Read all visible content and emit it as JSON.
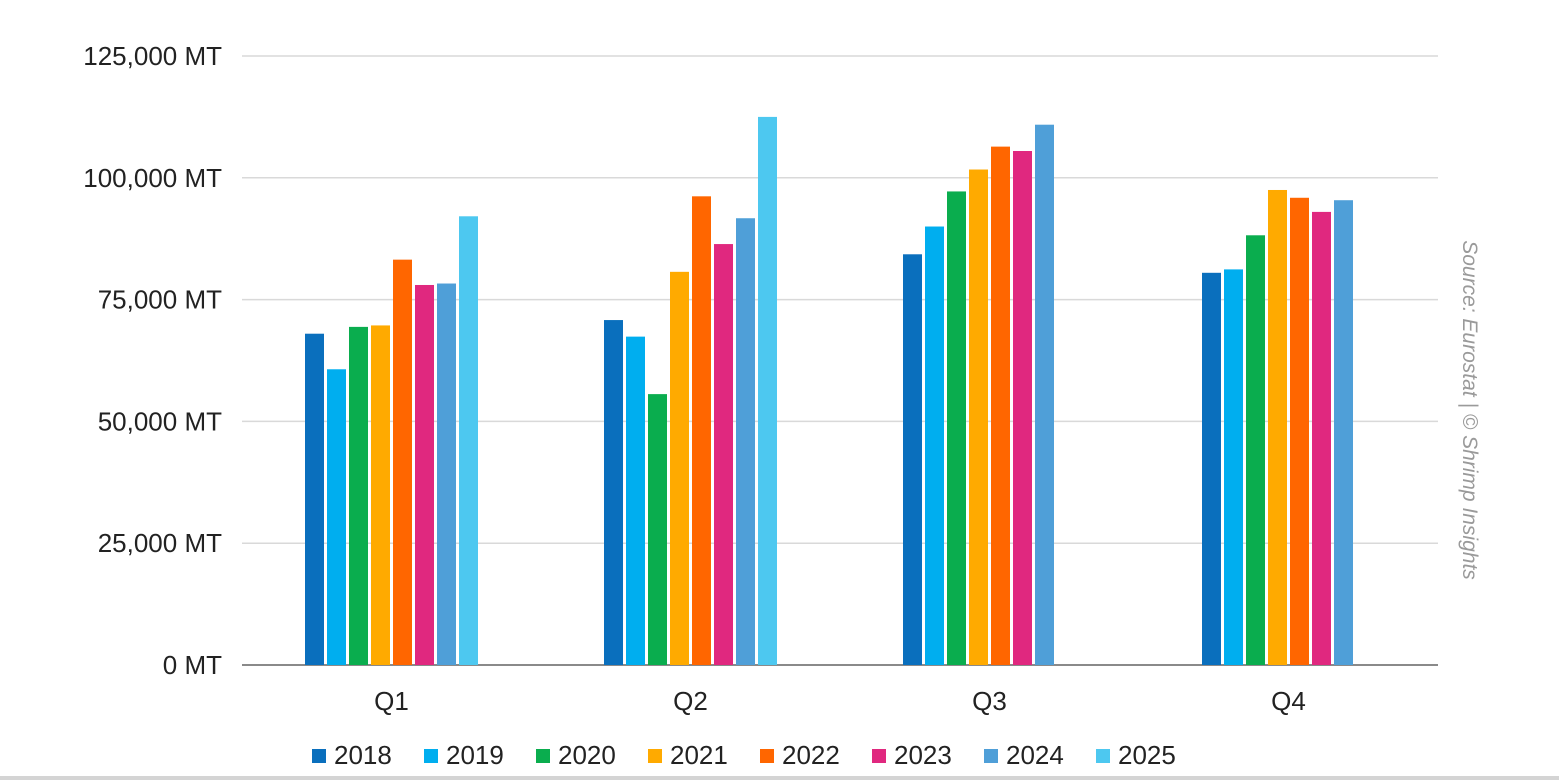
{
  "chart_data": {
    "type": "bar",
    "categories": [
      "Q1",
      "Q2",
      "Q3",
      "Q4"
    ],
    "y_ticks": [
      "0 MT",
      "25,000 MT",
      "50,000 MT",
      "75,000 MT",
      "100,000 MT",
      "125,000 MT"
    ],
    "y_tick_values": [
      0,
      25000,
      50000,
      75000,
      100000,
      125000
    ],
    "ylim": [
      0,
      125000
    ],
    "grid": true,
    "legend_position": "bottom",
    "series": [
      {
        "name": "2018",
        "color": "#0a6fbd",
        "values": [
          68000,
          70800,
          84300,
          80500
        ]
      },
      {
        "name": "2019",
        "color": "#00aeef",
        "values": [
          60700,
          67400,
          90000,
          81200
        ]
      },
      {
        "name": "2020",
        "color": "#0aad4e",
        "values": [
          69400,
          55600,
          97200,
          88200
        ]
      },
      {
        "name": "2021",
        "color": "#ffaa00",
        "values": [
          69700,
          80700,
          101700,
          97500
        ]
      },
      {
        "name": "2022",
        "color": "#ff6600",
        "values": [
          83200,
          96200,
          106400,
          95900
        ]
      },
      {
        "name": "2023",
        "color": "#e0287f",
        "values": [
          78000,
          86400,
          105500,
          93000
        ]
      },
      {
        "name": "2024",
        "color": "#4f9fd8",
        "values": [
          78300,
          91700,
          110900,
          95400
        ]
      },
      {
        "name": "2025",
        "color": "#4dc8f0",
        "values": [
          92100,
          112500,
          null,
          null
        ]
      }
    ],
    "source": "Source: Eurostat | © Shrimp Insights"
  }
}
